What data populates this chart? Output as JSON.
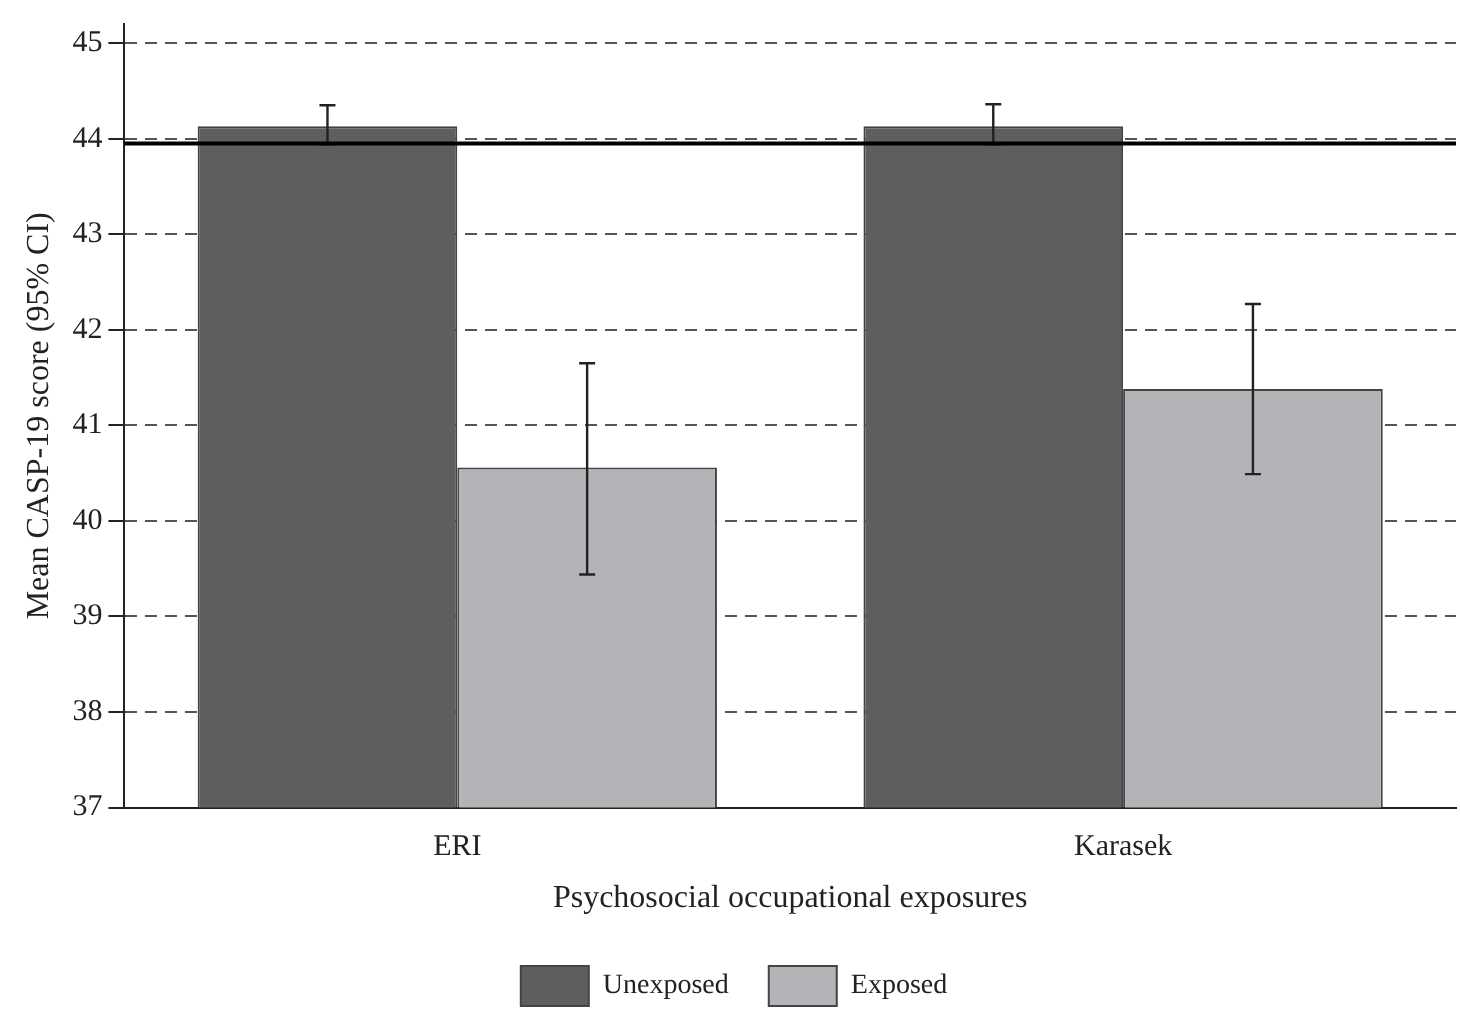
{
  "chart_data": {
    "type": "bar",
    "xlabel": "Psychosocial occupational exposures",
    "ylabel": "Mean CASP-19 score (95% CI)",
    "categories": [
      "ERI",
      "Karasek"
    ],
    "series": [
      {
        "name": "Unexposed",
        "color": "#5d5e60",
        "values": [
          44.13,
          44.13
        ],
        "errors": [
          [
            43.94,
            44.35
          ],
          [
            43.94,
            44.36
          ]
        ]
      },
      {
        "name": "Exposed",
        "color": "#b3b4b7",
        "values": [
          40.56,
          41.38
        ],
        "errors": [
          [
            39.44,
            41.65
          ],
          [
            40.49,
            42.27
          ]
        ]
      }
    ],
    "ylim": [
      37,
      45.2
    ],
    "yticks": [
      37,
      38,
      39,
      40,
      41,
      42,
      43,
      44,
      45
    ],
    "grid": "y",
    "ref_lines": [
      {
        "axis": "y",
        "value": 43.95,
        "color": "#000000",
        "line_style": "solid"
      }
    ],
    "legend": "bottom"
  }
}
